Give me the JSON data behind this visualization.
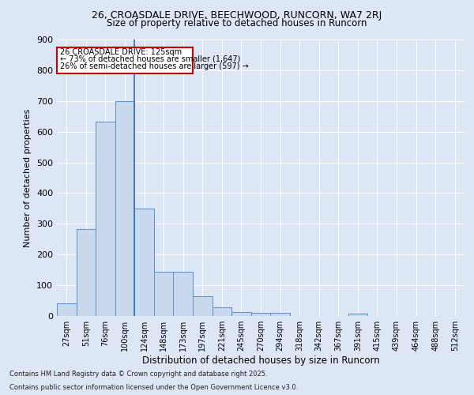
{
  "title1": "26, CROASDALE DRIVE, BEECHWOOD, RUNCORN, WA7 2RJ",
  "title2": "Size of property relative to detached houses in Runcorn",
  "xlabel": "Distribution of detached houses by size in Runcorn",
  "ylabel": "Number of detached properties",
  "categories": [
    "27sqm",
    "51sqm",
    "76sqm",
    "100sqm",
    "124sqm",
    "148sqm",
    "173sqm",
    "197sqm",
    "221sqm",
    "245sqm",
    "270sqm",
    "294sqm",
    "318sqm",
    "342sqm",
    "367sqm",
    "391sqm",
    "415sqm",
    "439sqm",
    "464sqm",
    "488sqm",
    "512sqm"
  ],
  "values": [
    42,
    283,
    632,
    700,
    350,
    145,
    145,
    65,
    28,
    12,
    11,
    10,
    0,
    0,
    0,
    8,
    0,
    0,
    0,
    0,
    0
  ],
  "bar_color": "#c9d9ed",
  "bar_edge_color": "#5b8fc9",
  "vline_x_index": 3.5,
  "vline_color": "#3a6ea5",
  "annotation_title": "26 CROASDALE DRIVE: 125sqm",
  "annotation_line1": "← 73% of detached houses are smaller (1,647)",
  "annotation_line2": "26% of semi-detached houses are larger (597) →",
  "annotation_box_color": "#ffffff",
  "annotation_box_edge": "#cc0000",
  "footer1": "Contains HM Land Registry data © Crown copyright and database right 2025.",
  "footer2": "Contains public sector information licensed under the Open Government Licence v3.0.",
  "bg_color": "#dce6f5",
  "plot_bg_color": "#dce6f5",
  "ylim": [
    0,
    900
  ],
  "yticks": [
    0,
    100,
    200,
    300,
    400,
    500,
    600,
    700,
    800,
    900
  ]
}
